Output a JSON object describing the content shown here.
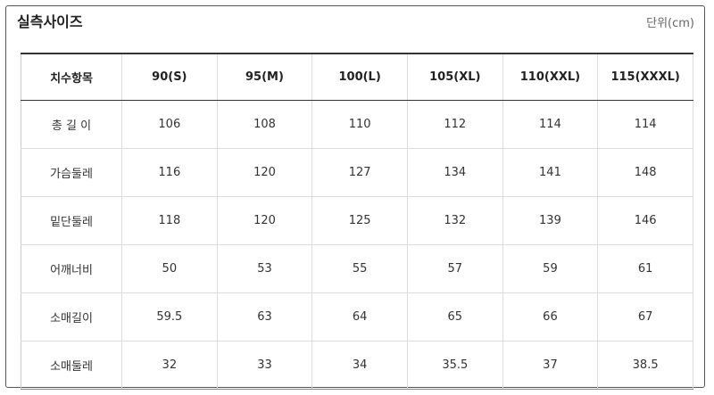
{
  "header": {
    "title": "실측사이즈",
    "unit": "단위(cm)"
  },
  "table": {
    "columns": [
      "치수항목",
      "90(S)",
      "95(M)",
      "100(L)",
      "105(XL)",
      "110(XXL)",
      "115(XXXL)"
    ],
    "rows": [
      [
        "총 길 이",
        "106",
        "108",
        "110",
        "112",
        "114",
        "114"
      ],
      [
        "가슴둘레",
        "116",
        "120",
        "127",
        "134",
        "141",
        "148"
      ],
      [
        "밑단둘레",
        "118",
        "120",
        "125",
        "132",
        "139",
        "146"
      ],
      [
        "어깨너비",
        "50",
        "53",
        "55",
        "57",
        "59",
        "61"
      ],
      [
        "소매길이",
        "59.5",
        "63",
        "64",
        "65",
        "66",
        "67"
      ],
      [
        "소매둘레",
        "32",
        "33",
        "34",
        "35.5",
        "37",
        "38.5"
      ]
    ]
  }
}
